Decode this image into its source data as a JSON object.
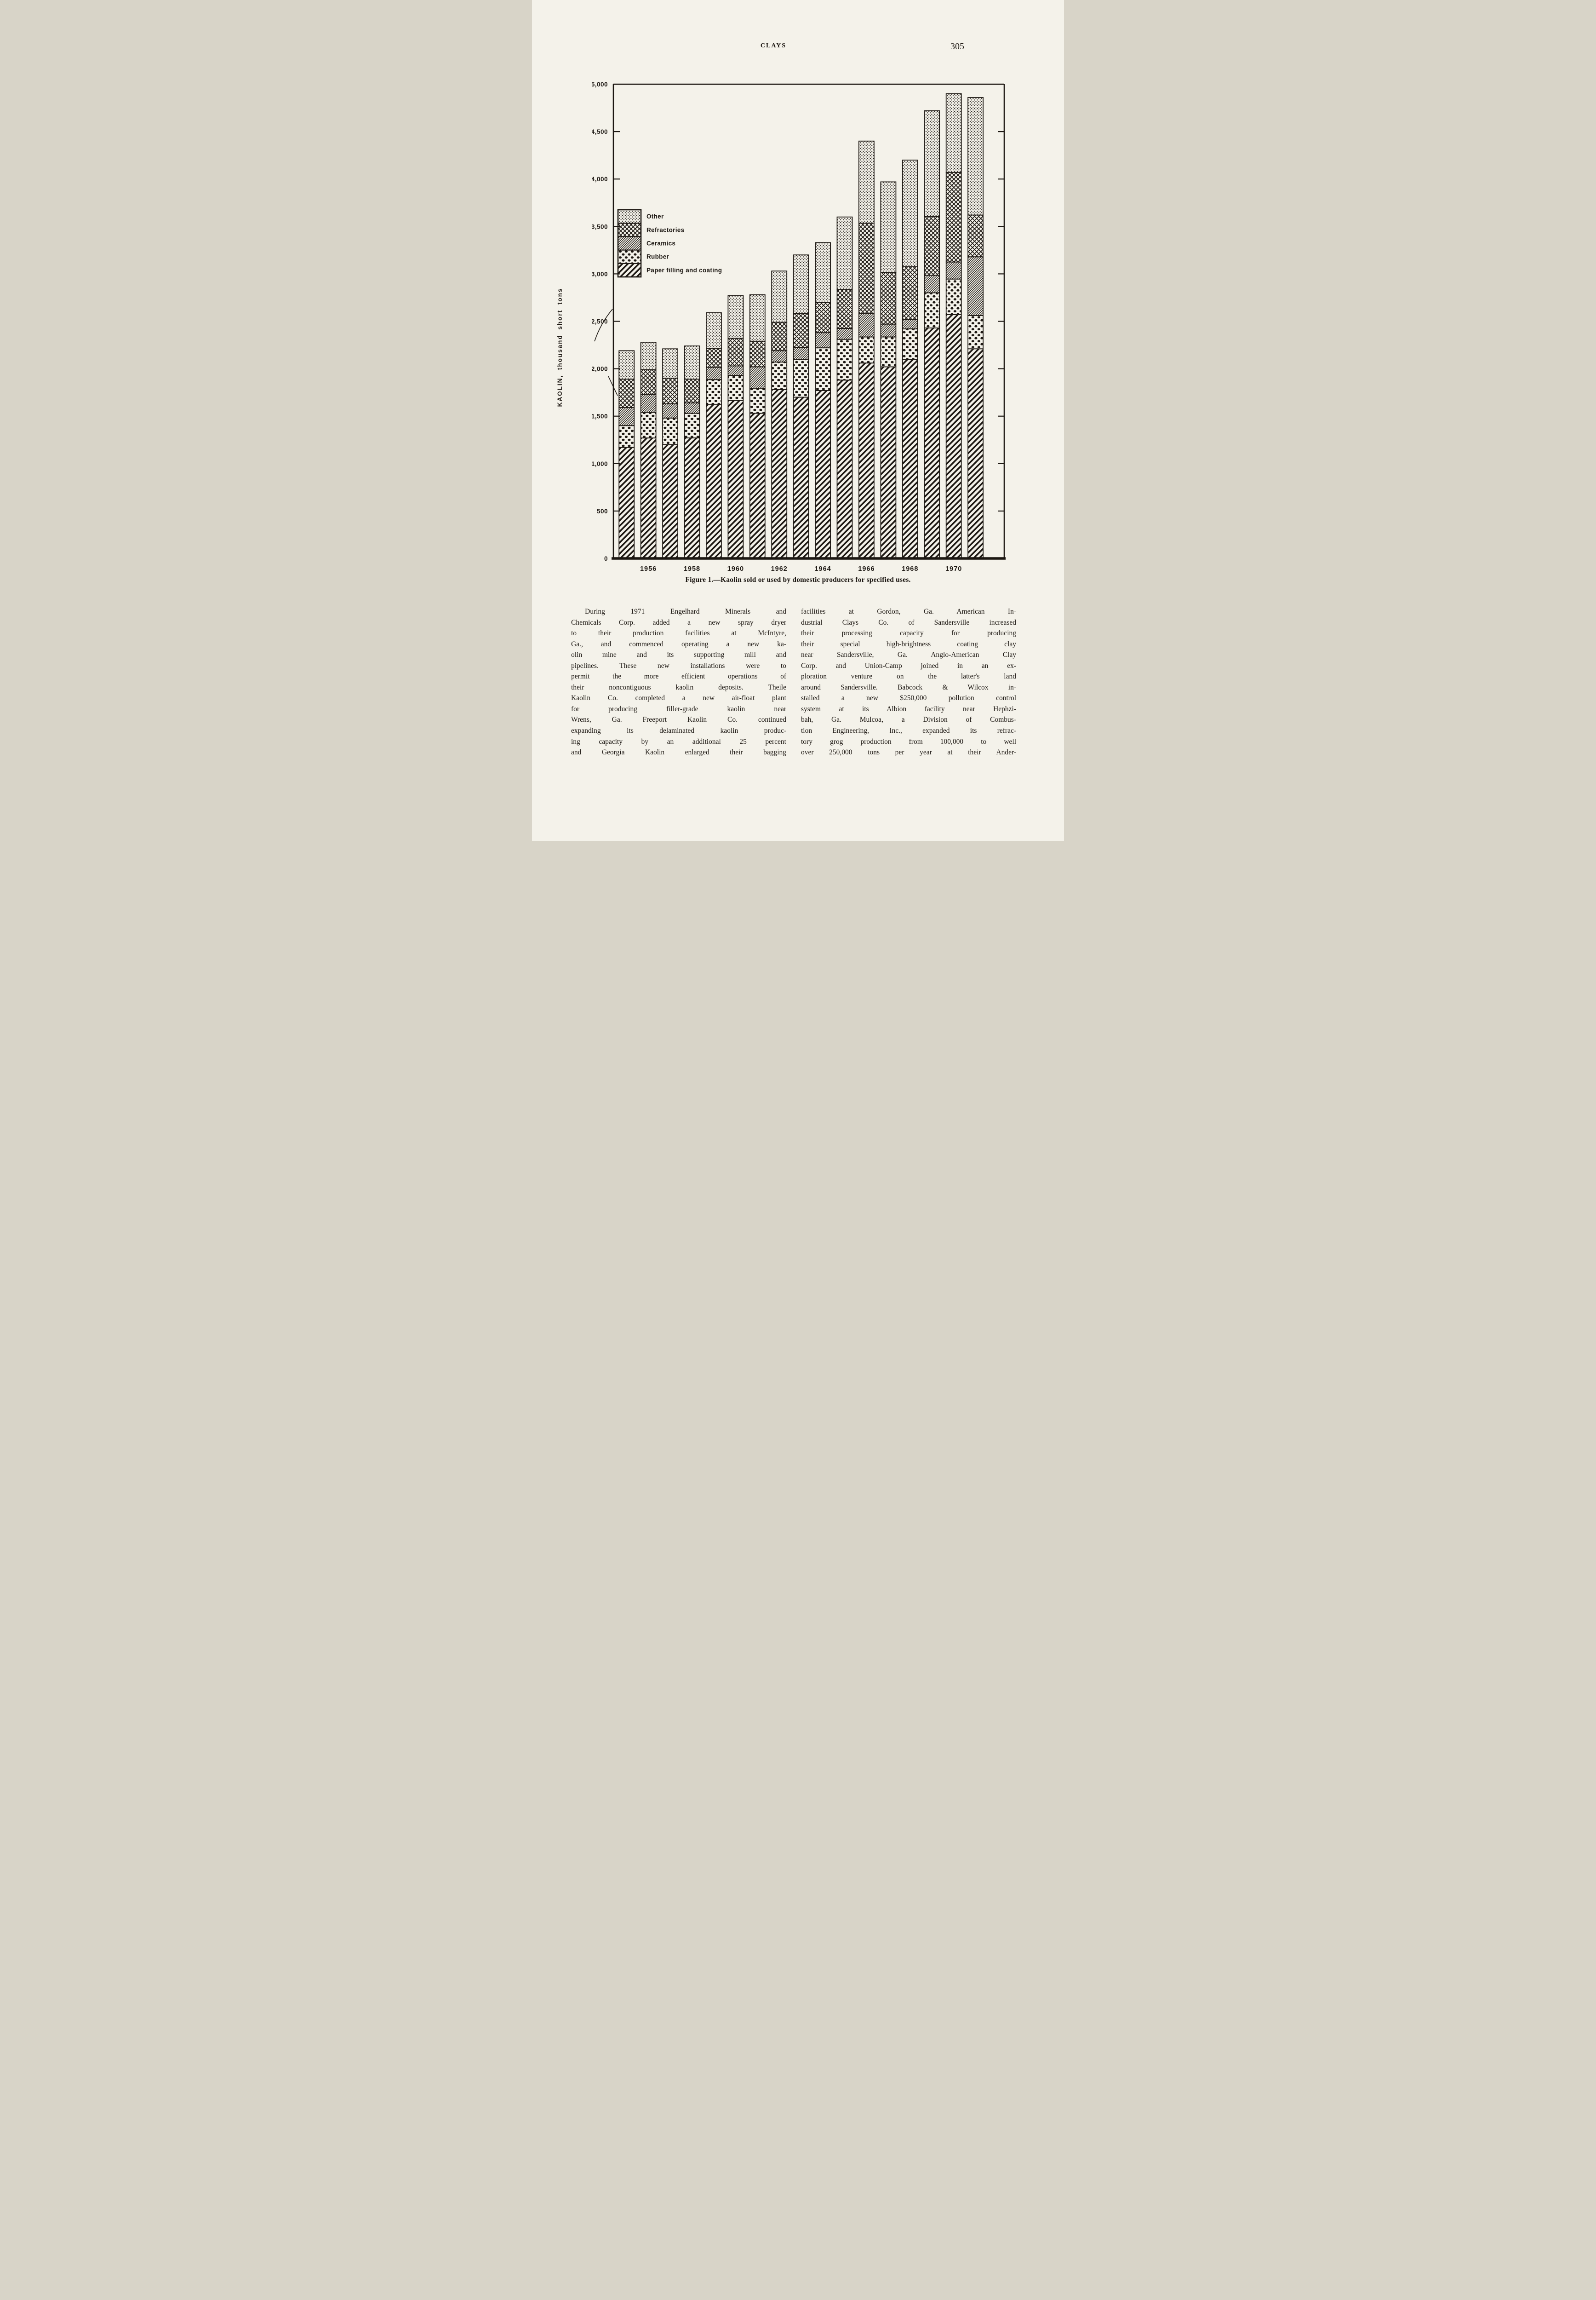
{
  "header": {
    "title": "CLAYS",
    "page_number": "305"
  },
  "colors": {
    "ink": "#1c1712",
    "paper": "#f4f2ea"
  },
  "figure": {
    "caption": "Figure 1.—Kaolin sold or used by domestic producers for specified uses."
  },
  "chart_data": {
    "type": "bar",
    "stacked": true,
    "ylabel": "KAOLIN, thousand short tons",
    "ylim": [
      0,
      5000
    ],
    "y_tick_step": 500,
    "grid": false,
    "legend_position": "upper-left-inside",
    "y_tick_labels": [
      "5,000",
      "4,500",
      "4,000",
      "3,500",
      "3,000",
      "2,500",
      "2,000",
      "1,500",
      "1,000",
      "500",
      "0"
    ],
    "categories": [
      1955,
      1956,
      1957,
      1958,
      1959,
      1960,
      1961,
      1962,
      1963,
      1964,
      1965,
      1966,
      1967,
      1968,
      1969,
      1970,
      1971
    ],
    "x_tick_labels": [
      "1956",
      "1958",
      "1960",
      "1962",
      "1964",
      "1966",
      "1968",
      "1970"
    ],
    "series": [
      {
        "name": "Paper filling and coating",
        "pattern": "wide-diagonal",
        "values": [
          1170,
          1270,
          1200,
          1270,
          1620,
          1665,
          1530,
          1780,
          1700,
          1770,
          1880,
          2060,
          2020,
          2100,
          2430,
          2570,
          2210
        ]
      },
      {
        "name": "Rubber",
        "pattern": "coarse-dots",
        "values": [
          230,
          270,
          280,
          260,
          265,
          265,
          265,
          290,
          400,
          450,
          430,
          275,
          315,
          320,
          370,
          375,
          350
        ]
      },
      {
        "name": "Ceramics",
        "pattern": "fine-diagonal",
        "values": [
          190,
          190,
          150,
          110,
          130,
          100,
          225,
          120,
          125,
          160,
          115,
          250,
          135,
          100,
          185,
          180,
          620
        ]
      },
      {
        "name": "Refractories",
        "pattern": "crosshatch",
        "values": [
          300,
          260,
          270,
          250,
          200,
          290,
          270,
          300,
          355,
          320,
          410,
          950,
          545,
          555,
          620,
          945,
          440
        ]
      },
      {
        "name": "Other",
        "pattern": "stipple",
        "values": [
          300,
          290,
          310,
          350,
          375,
          450,
          490,
          540,
          620,
          630,
          765,
          865,
          955,
          1125,
          1115,
          830,
          1240
        ]
      }
    ],
    "legend": [
      {
        "label": "Other",
        "pattern": "stipple"
      },
      {
        "label": "Refractories",
        "pattern": "crosshatch"
      },
      {
        "label": "Ceramics",
        "pattern": "fine-diagonal"
      },
      {
        "label": "Rubber",
        "pattern": "coarse-dots"
      },
      {
        "label": "Paper filling and coating",
        "pattern": "wide-diagonal"
      }
    ]
  },
  "body": {
    "columns": [
      {
        "indent_first": true,
        "lines": [
          "During 1971 Engelhard Minerals and",
          "Chemicals Corp. added a new spray dryer",
          "to their production facilities at McIntyre,",
          "Ga., and commenced operating a new ka-",
          "olin mine and its supporting mill and",
          "pipelines. These new installations were to",
          "permit the more efficient operations of",
          "their noncontiguous kaolin deposits. Theile",
          "Kaolin Co. completed a new air-float plant",
          "for producing filler-grade kaolin near",
          "Wrens, Ga. Freeport Kaolin Co. continued",
          "expanding its delaminated kaolin produc-",
          "ing capacity by an additional 25 percent",
          "and Georgia Kaolin enlarged their bagging"
        ]
      },
      {
        "indent_first": false,
        "lines": [
          "facilities at Gordon, Ga. American In-",
          "dustrial Clays Co. of Sandersville increased",
          "their processing capacity for producing",
          "their special high-brightness coating clay",
          "near Sandersville, Ga. Anglo-American Clay",
          "Corp. and Union-Camp joined in an ex-",
          "ploration venture on the latter's land",
          "around Sandersville. Babcock & Wilcox in-",
          "stalled a new $250,000 pollution control",
          "system at its Albion facility near Hephzi-",
          "bah, Ga. Mulcoa, a Division of Combus-",
          "tion Engineering, Inc., expanded its refrac-",
          "tory grog production from 100,000 to well",
          "over 250,000 tons per year at their Ander-"
        ]
      }
    ]
  }
}
